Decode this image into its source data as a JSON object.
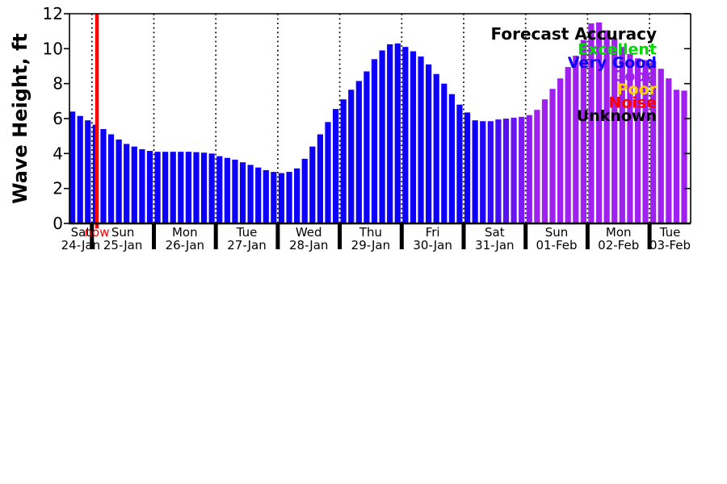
{
  "chart_data": {
    "type": "bar",
    "title": "",
    "ylabel": "Wave Height, ft",
    "units": "ft",
    "ylim": [
      0,
      12
    ],
    "yticks": [
      0,
      2,
      4,
      6,
      8,
      10,
      12
    ],
    "grid": "vertical-dotted-lines-at-day-boundaries",
    "x_axis": {
      "days": [
        {
          "dow": "Sat",
          "date": "24-Jan"
        },
        {
          "dow": "Sun",
          "date": "25-Jan"
        },
        {
          "dow": "Mon",
          "date": "26-Jan"
        },
        {
          "dow": "Tue",
          "date": "27-Jan"
        },
        {
          "dow": "Wed",
          "date": "28-Jan"
        },
        {
          "dow": "Thu",
          "date": "29-Jan"
        },
        {
          "dow": "Fri",
          "date": "30-Jan"
        },
        {
          "dow": "Sat",
          "date": "31-Jan"
        },
        {
          "dow": "Sun",
          "date": "01-Feb"
        },
        {
          "dow": "Mon",
          "date": "02-Feb"
        },
        {
          "dow": "Tue",
          "date": "03-Feb"
        }
      ],
      "bars_first_day": 3,
      "bars_per_day": 8,
      "bars_last_day": 5
    },
    "now_marker": {
      "label": "now",
      "color": "#ff0000"
    },
    "legend": {
      "title": "Forecast Accuracy",
      "position": "top-right",
      "entries": [
        {
          "label": "Excellent",
          "color": "#00d900"
        },
        {
          "label": "Very Good",
          "color": "#0d00fa"
        },
        {
          "label": "Good",
          "color": "#a020f0"
        },
        {
          "label": "Poor",
          "color": "#ffd000"
        },
        {
          "label": "Noise",
          "color": "#ff0000"
        },
        {
          "label": "Unknown",
          "color": "#000000"
        }
      ]
    },
    "bar_heights_ft": [
      6.4,
      6.15,
      5.9,
      5.65,
      5.4,
      5.1,
      4.8,
      4.55,
      4.4,
      4.25,
      4.15,
      4.1,
      4.1,
      4.1,
      4.1,
      4.1,
      4.08,
      4.05,
      4.0,
      3.85,
      3.75,
      3.65,
      3.5,
      3.35,
      3.2,
      3.05,
      2.95,
      2.88,
      2.95,
      3.15,
      3.7,
      4.4,
      5.1,
      5.8,
      6.55,
      7.1,
      7.65,
      8.15,
      8.7,
      9.4,
      9.9,
      10.25,
      10.3,
      10.1,
      9.85,
      9.55,
      9.1,
      8.55,
      8.0,
      7.4,
      6.8,
      6.35,
      5.9,
      5.85,
      5.85,
      5.95,
      6.0,
      6.05,
      6.1,
      6.2,
      6.5,
      7.1,
      7.7,
      8.3,
      8.95,
      9.6,
      10.5,
      11.45,
      11.5,
      11.05,
      10.6,
      10.1,
      9.7,
      9.45,
      9.35,
      9.3,
      8.85,
      8.3,
      7.65,
      7.6
    ],
    "bar_colors": [
      "#0d00fa",
      "#0d00fa",
      "#0d00fa",
      "#0d00fa",
      "#0d00fa",
      "#0d00fa",
      "#0d00fa",
      "#0d00fa",
      "#0d00fa",
      "#0d00fa",
      "#0d00fa",
      "#0d00fa",
      "#0d00fa",
      "#0d00fa",
      "#0d00fa",
      "#0d00fa",
      "#0d00fa",
      "#0d00fa",
      "#0d00fa",
      "#0d00fa",
      "#0d00fa",
      "#0d00fa",
      "#0d00fa",
      "#0d00fa",
      "#0d00fa",
      "#0d00fa",
      "#0d00fa",
      "#0d00fa",
      "#0d00fa",
      "#0d00fa",
      "#0d00fa",
      "#0d00fa",
      "#0d00fa",
      "#0d00fa",
      "#0d00fa",
      "#0d00fa",
      "#0d00fa",
      "#0d00fa",
      "#0d00fa",
      "#0d00fa",
      "#0d00fa",
      "#0d00fa",
      "#0d00fa",
      "#0d00fa",
      "#0d00fa",
      "#0d00fa",
      "#0d00fa",
      "#0d00fa",
      "#0d00fa",
      "#0d00fa",
      "#0d00fa",
      "#0d00fa",
      "#0d00fa",
      "#1f04f9",
      "#3208f8",
      "#440cf6",
      "#5710f5",
      "#6914f4",
      "#7b18f3",
      "#8e1cf1",
      "#a020f0",
      "#a020f0",
      "#a020f0",
      "#a020f0",
      "#a020f0",
      "#a020f0",
      "#a020f0",
      "#a020f0",
      "#a020f0",
      "#a020f0",
      "#a020f0",
      "#a020f0",
      "#a020f0",
      "#a020f0",
      "#a020f0",
      "#a020f0",
      "#a020f0",
      "#a020f0",
      "#a020f0",
      "#a020f0"
    ]
  }
}
